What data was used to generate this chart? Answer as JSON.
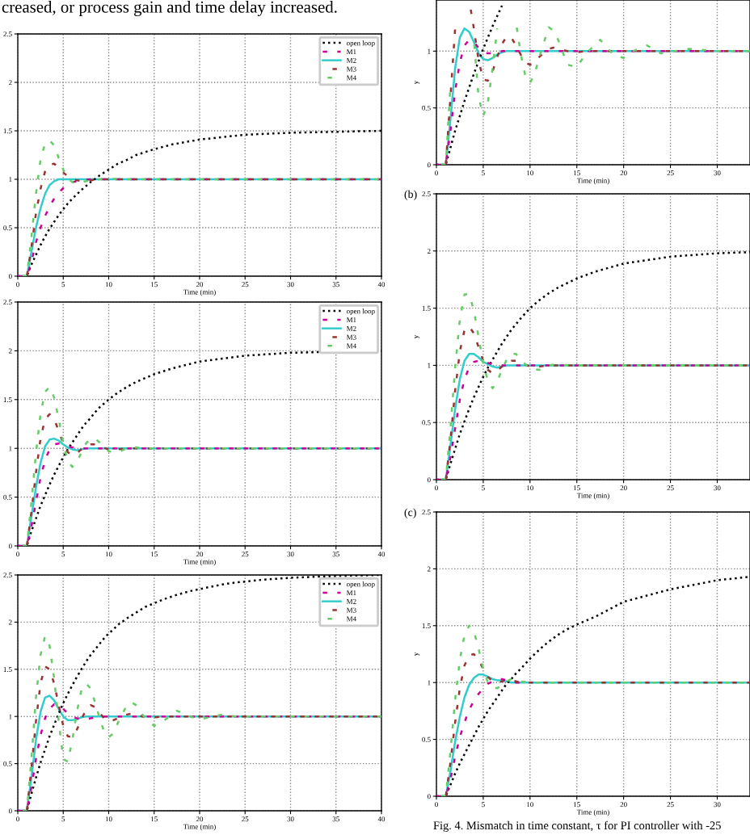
{
  "chart_data": [
    {
      "type": "line",
      "xlabel": "Time (min)",
      "xlim": [
        0,
        40
      ],
      "ylim": [
        0,
        2.5
      ],
      "xticks": [
        0,
        5,
        10,
        15,
        20,
        25,
        30,
        35,
        40
      ],
      "yticks": [
        0,
        0.5,
        1,
        1.5,
        2,
        2.5
      ],
      "grid": true,
      "legend": "top right",
      "annotations": [
        "creased, or process gain and time delay increased."
      ],
      "x": [
        0,
        1,
        1.5,
        2,
        2.5,
        3,
        3.5,
        4,
        4.5,
        5,
        5.5,
        6,
        7,
        8,
        9,
        10,
        11,
        12,
        13,
        14,
        15,
        17,
        20,
        25,
        30,
        35,
        40
      ],
      "series": [
        {
          "name": "open loop",
          "color": "#000000",
          "line_style": "dotted",
          "values": [
            0,
            0,
            0.12,
            0.22,
            0.32,
            0.41,
            0.49,
            0.56,
            0.63,
            0.69,
            0.75,
            0.8,
            0.89,
            0.97,
            1.04,
            1.1,
            1.16,
            1.2,
            1.25,
            1.28,
            1.31,
            1.36,
            1.41,
            1.46,
            1.48,
            1.49,
            1.5
          ]
        },
        {
          "name": "M1",
          "color": "#cc0099",
          "line_style": "dashed",
          "values": [
            0,
            0,
            0.15,
            0.35,
            0.5,
            0.62,
            0.72,
            0.8,
            0.86,
            0.91,
            0.95,
            0.97,
            0.99,
            1,
            1,
            1,
            1,
            1,
            1,
            1,
            1,
            1,
            1,
            1,
            1,
            1,
            1
          ]
        },
        {
          "name": "M2",
          "color": "#33cccc",
          "line_style": "solid",
          "values": [
            0,
            0,
            0.25,
            0.5,
            0.7,
            0.85,
            0.94,
            0.98,
            1,
            1,
            1,
            1,
            1,
            1,
            1,
            1,
            1,
            1,
            1,
            1,
            1,
            1,
            1,
            1,
            1,
            1,
            1
          ]
        },
        {
          "name": "M3",
          "color": "#993333",
          "line_style": "dashed",
          "values": [
            0,
            0,
            0.3,
            0.65,
            0.9,
            1.08,
            1.15,
            1.16,
            1.12,
            1.07,
            1.03,
            1,
            0.98,
            0.99,
            1,
            1,
            1,
            1,
            1,
            1,
            1,
            1,
            1,
            1,
            1,
            1,
            1
          ]
        },
        {
          "name": "M4",
          "color": "#66cc66",
          "line_style": "dashed",
          "values": [
            0,
            0,
            0.4,
            0.85,
            1.2,
            1.37,
            1.4,
            1.35,
            1.22,
            1.1,
            1.01,
            0.97,
            0.97,
            0.99,
            1,
            1.01,
            1,
            1,
            1,
            1,
            1,
            1,
            1,
            1,
            1,
            1,
            1
          ]
        }
      ]
    },
    {
      "type": "line",
      "xlabel": "Time (min)",
      "xlim": [
        0,
        40
      ],
      "ylim": [
        0,
        2.5
      ],
      "xticks": [
        0,
        5,
        10,
        15,
        20,
        25,
        30,
        35,
        40
      ],
      "yticks": [
        0,
        0.5,
        1,
        1.5,
        2,
        2.5
      ],
      "grid": true,
      "legend": "top right",
      "x": [
        0,
        1,
        1.5,
        2,
        2.5,
        3,
        3.5,
        4,
        4.5,
        5,
        5.5,
        6,
        6.5,
        7,
        7.5,
        8,
        8.5,
        9,
        10,
        11,
        12,
        13,
        14,
        15,
        17,
        20,
        25,
        30,
        35,
        40
      ],
      "series": [
        {
          "name": "open loop",
          "color": "#000000",
          "line_style": "dotted",
          "values": [
            0,
            0,
            0.15,
            0.28,
            0.41,
            0.52,
            0.63,
            0.73,
            0.82,
            0.91,
            0.99,
            1.06,
            1.13,
            1.2,
            1.26,
            1.31,
            1.37,
            1.42,
            1.5,
            1.57,
            1.63,
            1.68,
            1.72,
            1.76,
            1.82,
            1.89,
            1.95,
            1.98,
            1.99,
            2
          ]
        },
        {
          "name": "M1",
          "color": "#cc0099",
          "line_style": "dashed",
          "values": [
            0,
            0,
            0.2,
            0.45,
            0.7,
            0.88,
            0.99,
            1.04,
            1.05,
            1.04,
            1.02,
            1.01,
            1,
            1,
            1,
            1,
            1,
            1,
            1,
            1,
            1,
            1,
            1,
            1,
            1,
            1,
            1,
            1,
            1,
            1
          ]
        },
        {
          "name": "M2",
          "color": "#33cccc",
          "line_style": "solid",
          "values": [
            0,
            0,
            0.3,
            0.6,
            0.85,
            1.02,
            1.09,
            1.1,
            1.08,
            1.04,
            1.01,
            0.99,
            0.98,
            0.99,
            1,
            1,
            1,
            1,
            1,
            1,
            1,
            1,
            1,
            1,
            1,
            1,
            1,
            1,
            1,
            1
          ]
        },
        {
          "name": "M3",
          "color": "#993333",
          "line_style": "dashed",
          "values": [
            0,
            0,
            0.35,
            0.75,
            1.1,
            1.3,
            1.35,
            1.3,
            1.18,
            1.05,
            0.96,
            0.93,
            0.95,
            0.99,
            1.02,
            1.04,
            1.04,
            1.02,
            0.99,
            0.99,
            1,
            1,
            1,
            1,
            1,
            1,
            1,
            1,
            1,
            1
          ]
        },
        {
          "name": "M4",
          "color": "#66cc66",
          "line_style": "dashed",
          "values": [
            0,
            0,
            0.45,
            0.95,
            1.35,
            1.58,
            1.63,
            1.52,
            1.3,
            1.05,
            0.87,
            0.81,
            0.86,
            0.96,
            1.05,
            1.1,
            1.1,
            1.06,
            0.97,
            0.96,
            1,
            1.01,
            1,
            1,
            1,
            1,
            1,
            1,
            1,
            1
          ]
        }
      ]
    },
    {
      "type": "line",
      "xlabel": "Time (min)",
      "xlim": [
        0,
        40
      ],
      "ylim": [
        0,
        2.5
      ],
      "xticks": [
        0,
        5,
        10,
        15,
        20,
        25,
        30,
        35,
        40
      ],
      "yticks": [
        0,
        0.5,
        1,
        1.5,
        2,
        2.5
      ],
      "grid": true,
      "legend": "top right",
      "x": [
        0,
        1,
        1.5,
        2,
        2.5,
        3,
        3.5,
        4,
        4.5,
        5,
        5.5,
        6,
        6.5,
        7,
        7.5,
        8,
        8.5,
        9,
        9.5,
        10,
        10.5,
        11,
        12,
        12.5,
        13,
        14,
        15,
        16,
        17.5,
        19,
        20,
        21,
        22.5,
        24,
        27,
        30,
        35,
        40
      ],
      "series": [
        {
          "name": "open loop",
          "color": "#000000",
          "line_style": "dotted",
          "values": [
            0,
            0,
            0.18,
            0.35,
            0.51,
            0.65,
            0.79,
            0.91,
            1.03,
            1.14,
            1.24,
            1.33,
            1.42,
            1.5,
            1.58,
            1.65,
            1.71,
            1.77,
            1.83,
            1.88,
            1.92,
            1.97,
            2.04,
            2.07,
            2.1,
            2.16,
            2.2,
            2.24,
            2.29,
            2.33,
            2.35,
            2.37,
            2.4,
            2.42,
            2.45,
            2.47,
            2.49,
            2.5
          ]
        },
        {
          "name": "M1",
          "color": "#cc0099",
          "line_style": "dashed",
          "values": [
            0,
            0,
            0.25,
            0.55,
            0.8,
            0.98,
            1.08,
            1.13,
            1.12,
            1.08,
            1.03,
            1,
            0.98,
            0.97,
            0.97,
            0.98,
            0.99,
            1,
            1,
            1,
            1,
            1,
            1,
            1,
            1,
            1,
            1,
            1,
            1,
            1,
            1,
            1,
            1,
            1,
            1,
            1,
            1,
            1
          ]
        },
        {
          "name": "M2",
          "color": "#33cccc",
          "line_style": "solid",
          "values": [
            0,
            0,
            0.35,
            0.75,
            1.05,
            1.2,
            1.22,
            1.17,
            1.08,
            1,
            0.96,
            0.96,
            0.97,
            0.99,
            1,
            1,
            1,
            1,
            1,
            1,
            1,
            1,
            1,
            1,
            1,
            1,
            1,
            1,
            1,
            1,
            1,
            1,
            1,
            1,
            1,
            1,
            1,
            1
          ]
        },
        {
          "name": "M3",
          "color": "#993333",
          "line_style": "dashed",
          "values": [
            0,
            0,
            0.45,
            0.95,
            1.35,
            1.53,
            1.5,
            1.35,
            1.12,
            0.9,
            0.79,
            0.78,
            0.86,
            0.97,
            1.07,
            1.12,
            1.1,
            1.04,
            0.98,
            0.95,
            0.96,
            0.98,
            1.02,
            1.03,
            1.02,
            0.99,
            0.99,
            1,
            1,
            1,
            1,
            1,
            1,
            1,
            1,
            1,
            1,
            1
          ]
        },
        {
          "name": "M4",
          "color": "#66cc66",
          "line_style": "dashed",
          "values": [
            0,
            0,
            0.55,
            1.2,
            1.65,
            1.85,
            1.75,
            1.4,
            0.95,
            0.55,
            0.52,
            0.75,
            1.05,
            1.28,
            1.35,
            1.3,
            1.15,
            0.98,
            0.84,
            0.78,
            0.82,
            0.93,
            1.12,
            1.15,
            1.12,
            0.98,
            0.9,
            0.95,
            1.06,
            1,
            0.97,
            0.99,
            1.02,
            1,
            1,
            1,
            1,
            1
          ]
        }
      ]
    },
    {
      "type": "line",
      "xlabel": "Time (min)",
      "ylabel": "y",
      "xlim": [
        0,
        33.5
      ],
      "ylim": [
        0,
        1.45
      ],
      "xticks": [
        0,
        5,
        10,
        15,
        20,
        25,
        30
      ],
      "yticks": [
        0,
        0.5,
        1
      ],
      "grid": true,
      "x": [
        0,
        1,
        1.5,
        2,
        2.5,
        3,
        3.5,
        4,
        4.5,
        5,
        5.5,
        6,
        6.5,
        7,
        7.5,
        8,
        8.5,
        9,
        9.5,
        10,
        10.5,
        11,
        12,
        12.5,
        13,
        14,
        15,
        16,
        17.5,
        19,
        20,
        21,
        22.5,
        24,
        27,
        30,
        33.5
      ],
      "series": [
        {
          "color": "#000000",
          "line_style": "dotted",
          "values": [
            0,
            0,
            0.15,
            0.3,
            0.43,
            0.56,
            0.68,
            0.8,
            0.91,
            1.02,
            1.12,
            1.22,
            1.31,
            1.4,
            null,
            null,
            null,
            null,
            null,
            null,
            null,
            null,
            null,
            null,
            null,
            null,
            null,
            null,
            null,
            null,
            null,
            null,
            null,
            null,
            null,
            null,
            null
          ]
        },
        {
          "color": "#cc0099",
          "line_style": "dashed",
          "values": [
            0,
            0,
            0.3,
            0.65,
            0.9,
            1.05,
            1.1,
            1.08,
            1.03,
            0.99,
            0.98,
            0.98,
            0.99,
            1,
            1,
            1,
            1,
            1,
            1,
            1,
            1,
            1,
            1,
            1,
            1,
            1,
            1,
            1,
            1,
            1,
            1,
            1,
            1,
            1,
            1,
            1,
            1
          ]
        },
        {
          "color": "#33cccc",
          "line_style": "solid",
          "values": [
            0,
            0,
            0.4,
            0.85,
            1.12,
            1.2,
            1.17,
            1.08,
            0.98,
            0.93,
            0.92,
            0.94,
            0.97,
            0.99,
            1,
            1,
            1,
            1,
            1,
            1,
            1,
            1,
            1,
            1,
            1,
            1,
            1,
            1,
            1,
            1,
            1,
            1,
            1,
            1,
            1,
            1,
            1
          ]
        },
        {
          "color": "#993333",
          "line_style": "dashed",
          "values": [
            0,
            0,
            0.6,
            1.2,
            null,
            null,
            1.45,
            1.2,
            0.92,
            0.75,
            0.74,
            0.82,
            0.95,
            1.06,
            1.13,
            1.12,
            1.05,
            0.97,
            0.9,
            0.88,
            0.9,
            0.95,
            1.02,
            1.03,
            1.02,
            1,
            0.99,
            1,
            1,
            1,
            1,
            1,
            1,
            1,
            1,
            1,
            1
          ]
        },
        {
          "color": "#66cc66",
          "line_style": "dashed",
          "values": [
            0,
            0,
            0.7,
            null,
            null,
            null,
            null,
            1.1,
            0.6,
            0.43,
            0.55,
            0.85,
            1.2,
            null,
            null,
            null,
            1.25,
            0.98,
            0.78,
            0.72,
            0.8,
            0.95,
            1.21,
            1.18,
            1.1,
            0.88,
            0.86,
            0.98,
            1.1,
            0.96,
            0.94,
            1,
            1.05,
            0.98,
            1.02,
            1,
            1
          ]
        }
      ]
    },
    {
      "type": "line",
      "xlabel": "Time (min)",
      "ylabel": "y",
      "xlim": [
        0,
        33.5
      ],
      "ylim": [
        0,
        2.5
      ],
      "xticks": [
        0,
        5,
        10,
        15,
        20,
        25,
        30
      ],
      "yticks": [
        0,
        0.5,
        1,
        1.5,
        2,
        2.5
      ],
      "grid": true,
      "annotations": [
        "(b)"
      ],
      "x": [
        0,
        1,
        1.5,
        2,
        2.5,
        3,
        3.5,
        4,
        4.5,
        5,
        5.5,
        6,
        6.5,
        7,
        7.5,
        8,
        8.5,
        9,
        10,
        11,
        12,
        13,
        14,
        15,
        17,
        20,
        25,
        30,
        33.5
      ],
      "series": [
        {
          "color": "#000000",
          "line_style": "dotted",
          "values": [
            0,
            0,
            0.14,
            0.27,
            0.4,
            0.51,
            0.62,
            0.72,
            0.81,
            0.9,
            0.98,
            1.05,
            1.12,
            1.19,
            1.25,
            1.31,
            1.36,
            1.41,
            1.5,
            1.57,
            1.63,
            1.68,
            1.72,
            1.76,
            1.82,
            1.89,
            1.95,
            1.98,
            1.99
          ]
        },
        {
          "color": "#cc0099",
          "line_style": "dashed",
          "values": [
            0,
            0,
            0.2,
            0.45,
            0.7,
            0.88,
            0.98,
            1.03,
            1.04,
            1.03,
            1.02,
            1.01,
            1,
            1,
            1,
            1,
            1,
            1,
            1,
            1,
            1,
            1,
            1,
            1,
            1,
            1,
            1,
            1,
            1
          ]
        },
        {
          "color": "#33cccc",
          "line_style": "solid",
          "values": [
            0,
            0,
            0.3,
            0.62,
            0.88,
            1.04,
            1.1,
            1.1,
            1.07,
            1.03,
            1.01,
            0.99,
            0.98,
            0.99,
            1,
            1,
            1,
            1,
            1,
            1,
            1,
            1,
            1,
            1,
            1,
            1,
            1,
            1,
            1
          ]
        },
        {
          "color": "#993333",
          "line_style": "dashed",
          "values": [
            0,
            0,
            0.35,
            0.78,
            1.12,
            1.31,
            1.34,
            1.28,
            1.16,
            1.04,
            0.96,
            0.93,
            0.95,
            0.99,
            1.02,
            1.04,
            1.04,
            1.02,
            0.99,
            0.99,
            1,
            1,
            1,
            1,
            1,
            1,
            1,
            1,
            1
          ]
        },
        {
          "color": "#66cc66",
          "line_style": "dashed",
          "values": [
            0,
            0,
            0.45,
            0.98,
            1.4,
            1.62,
            1.62,
            1.48,
            1.25,
            1.02,
            0.86,
            0.8,
            0.86,
            0.96,
            1.05,
            1.1,
            1.1,
            1.05,
            0.97,
            0.96,
            1,
            1.01,
            1,
            1,
            1,
            1,
            1,
            1,
            1
          ]
        }
      ]
    },
    {
      "type": "line",
      "xlabel": "Time (min)",
      "ylabel": "y",
      "xlim": [
        0,
        33.5
      ],
      "ylim": [
        0,
        2.5
      ],
      "xticks": [
        0,
        5,
        10,
        15,
        20,
        25,
        30
      ],
      "yticks": [
        0,
        0.5,
        1,
        1.5,
        2,
        2.5
      ],
      "grid": true,
      "annotations": [
        "(c)",
        "Fig. 4. Mismatch in time constant, τ for PI controller with -25"
      ],
      "x": [
        0,
        1,
        1.5,
        2,
        2.5,
        3,
        3.5,
        4,
        4.5,
        5,
        5.5,
        6,
        6.5,
        7,
        7.5,
        8,
        8.5,
        9,
        10,
        11,
        12,
        13,
        14,
        15,
        17,
        20,
        25,
        30,
        33.5
      ],
      "series": [
        {
          "color": "#000000",
          "line_style": "dotted",
          "values": [
            0,
            0,
            0.1,
            0.2,
            0.29,
            0.37,
            0.45,
            0.53,
            0.61,
            0.68,
            0.75,
            0.81,
            0.87,
            0.93,
            0.99,
            1.03,
            1.08,
            1.12,
            1.21,
            1.29,
            1.36,
            1.42,
            1.47,
            1.51,
            1.58,
            1.71,
            1.82,
            1.9,
            1.93
          ]
        },
        {
          "color": "#cc0099",
          "line_style": "dashed",
          "values": [
            0,
            0,
            0.15,
            0.35,
            0.52,
            0.65,
            0.76,
            0.84,
            0.9,
            0.95,
            0.99,
            1.01,
            1.03,
            1.03,
            1.02,
            1.01,
            1,
            1,
            null,
            null,
            null,
            null,
            null,
            null,
            null,
            null,
            null,
            null,
            null
          ]
        },
        {
          "color": "#33cccc",
          "line_style": "solid",
          "values": [
            0,
            0,
            0.22,
            0.48,
            0.7,
            0.87,
            0.98,
            1.04,
            1.07,
            1.07,
            1.05,
            1.03,
            1.02,
            1.02,
            1.01,
            1,
            1,
            1,
            1,
            1,
            1,
            1,
            1,
            1,
            1,
            1,
            1,
            1,
            1
          ]
        },
        {
          "color": "#993333",
          "line_style": "dashed",
          "values": [
            0,
            0,
            0.3,
            0.65,
            0.95,
            1.15,
            1.24,
            1.25,
            1.2,
            1.12,
            1.05,
            1.01,
            1,
            1.01,
            1.02,
            1.02,
            1.01,
            1,
            1,
            1,
            1,
            1,
            1,
            1,
            1,
            1,
            1,
            1,
            1
          ]
        },
        {
          "color": "#66cc66",
          "line_style": "dashed",
          "values": [
            0,
            0,
            0.4,
            0.85,
            1.2,
            1.42,
            1.5,
            1.45,
            1.3,
            1.12,
            1,
            0.96,
            0.95,
            0.98,
            1.01,
            1.03,
            1.02,
            1.01,
            1,
            1,
            1,
            1,
            1,
            1,
            1,
            1,
            1,
            1,
            1
          ]
        }
      ]
    }
  ]
}
